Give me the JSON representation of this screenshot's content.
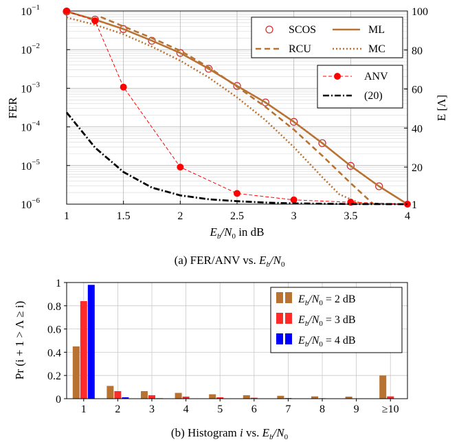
{
  "chart_data": [
    {
      "type": "line",
      "caption": {
        "prefix": "(a) FER/ANV vs. ",
        "suffix_italic": "E",
        "sub": "b",
        "tail": "/N",
        "sub2": "0"
      },
      "xlabel": {
        "italic": "E",
        "sub": "b",
        "tail": "/N",
        "sub2": "0",
        "rest": " in dB"
      },
      "ylabel": "FER",
      "y2label": "E [Λ]",
      "xlim": [
        1,
        4
      ],
      "xticks": [
        "1",
        "1.5",
        "2",
        "2.5",
        "3",
        "3.5",
        "4"
      ],
      "ylim_log10": [
        -6,
        -1
      ],
      "yticks": [
        {
          "base": "10",
          "exp": "−1"
        },
        {
          "base": "10",
          "exp": "−2"
        },
        {
          "base": "10",
          "exp": "−3"
        },
        {
          "base": "10",
          "exp": "−4"
        },
        {
          "base": "10",
          "exp": "−5"
        },
        {
          "base": "10",
          "exp": "−6"
        }
      ],
      "y2ticks": [
        "100",
        "80",
        "60",
        "40",
        "20",
        "1"
      ],
      "series": [
        {
          "name": "SCOS",
          "axis": "left",
          "color": "#d32f2f",
          "style": "circle",
          "x": [
            1,
            1.25,
            1.5,
            1.75,
            2,
            2.25,
            2.5,
            2.75,
            3,
            3.25,
            3.5,
            3.75
          ],
          "y": [
            0.097,
            0.06,
            0.034,
            0.017,
            0.0082,
            0.0032,
            0.00115,
            0.00043,
            0.000135,
            3.8e-05,
            9.8e-06,
            2.9e-06
          ]
        },
        {
          "name": "ML",
          "axis": "left",
          "color": "#b87333",
          "style": "solid",
          "x": [
            1,
            1.25,
            1.5,
            1.75,
            2,
            2.25,
            2.5,
            2.75,
            3,
            3.25,
            3.5,
            3.75,
            4
          ],
          "y": [
            0.097,
            0.06,
            0.034,
            0.017,
            0.0082,
            0.0032,
            0.00115,
            0.00043,
            0.000135,
            3.8e-05,
            9.8e-06,
            2.9e-06,
            1e-06
          ]
        },
        {
          "name": "RCU",
          "axis": "left",
          "color": "#b87333",
          "style": "dashed",
          "x": [
            1.3,
            1.5,
            1.75,
            2,
            2.25,
            2.5,
            2.75,
            3,
            3.25,
            3.5,
            3.7
          ],
          "y": [
            0.07,
            0.04,
            0.02,
            0.0094,
            0.0035,
            0.0011,
            0.00033,
            8.5e-05,
            1.8e-05,
            3.5e-06,
            1e-06
          ]
        },
        {
          "name": "MC",
          "axis": "left",
          "color": "#b87333",
          "style": "dotted",
          "x": [
            1,
            1.25,
            1.5,
            1.75,
            2,
            2.25,
            2.5,
            2.75,
            3,
            3.25,
            3.4,
            3.6
          ],
          "y": [
            0.068,
            0.044,
            0.025,
            0.012,
            0.0052,
            0.0019,
            0.00058,
            0.00015,
            3e-05,
            5e-06,
            1.8e-06,
            1e-06
          ]
        },
        {
          "name": "ANV",
          "axis": "right",
          "color": "#ff0000",
          "style": "dashed-marker",
          "x": [
            1,
            1.25,
            1.5,
            2,
            2.5,
            3,
            3.5,
            4
          ],
          "y": [
            100,
            95,
            61,
            20,
            6.5,
            3.2,
            2,
            1
          ]
        },
        {
          "name": "(20)",
          "axis": "right",
          "color": "#000000",
          "style": "dashdot",
          "x": [
            1,
            1.25,
            1.5,
            1.75,
            2,
            2.25,
            2.5,
            2.75,
            3,
            3.25,
            3.5,
            3.75,
            4
          ],
          "y": [
            48,
            30,
            17.5,
            9.5,
            5.5,
            3.5,
            2.5,
            1.8,
            1.4,
            1.2,
            1.08,
            1.02,
            1.0
          ]
        }
      ],
      "legend": {
        "placement": "top-right"
      }
    },
    {
      "type": "bar",
      "caption": {
        "prefix": "(b) Histogram ",
        "ital": "i",
        "mid": " vs. ",
        "suffix_italic": "E",
        "sub": "b",
        "tail": "/N",
        "sub2": "0"
      },
      "ylabel": "Pr (i + 1 > Λ ≥ i)",
      "categories": [
        "1",
        "2",
        "3",
        "4",
        "5",
        "6",
        "7",
        "8",
        "9",
        "≥10"
      ],
      "ylim": [
        0,
        1
      ],
      "yticks": [
        "1",
        "0.8",
        "0.6",
        "0.4",
        "0.2",
        "0"
      ],
      "series": [
        {
          "name": "E_b/N_0 = 2 dB",
          "color": "#b87333",
          "values": [
            0.45,
            0.11,
            0.065,
            0.05,
            0.038,
            0.03,
            0.025,
            0.02,
            0.018,
            0.2
          ]
        },
        {
          "name": "E_b/N_0 = 3 dB",
          "color": "#ff2b2b",
          "values": [
            0.84,
            0.065,
            0.03,
            0.018,
            0.012,
            0.008,
            0.006,
            0.004,
            0.003,
            0.02
          ]
        },
        {
          "name": "E_b/N_0 = 4 dB",
          "color": "#0000ff",
          "values": [
            0.98,
            0.012,
            0.004,
            0.002,
            0.001,
            0.0005,
            0.0003,
            0.0002,
            0.0001,
            0.0005
          ]
        }
      ],
      "legend_labels": [
        {
          "italic": "E",
          "sub": "b",
          "tail": "/N",
          "sub2": "0",
          "rest": " = 2 dB"
        },
        {
          "italic": "E",
          "sub": "b",
          "tail": "/N",
          "sub2": "0",
          "rest": " = 3 dB"
        },
        {
          "italic": "E",
          "sub": "b",
          "tail": "/N",
          "sub2": "0",
          "rest": " = 4 dB"
        }
      ],
      "legend": {
        "placement": "top-right"
      },
      "grid": true
    }
  ]
}
